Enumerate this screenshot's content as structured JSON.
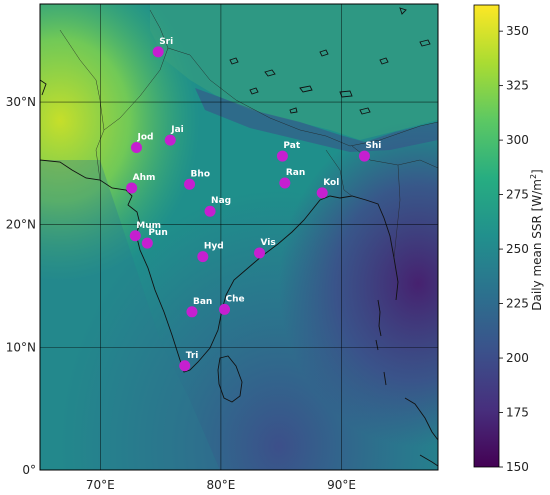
{
  "map": {
    "lon_ticks": [
      "70°E",
      "80°E",
      "90°E"
    ],
    "lat_ticks": [
      "0°",
      "10°N",
      "20°N",
      "30°N"
    ],
    "lon_values": [
      70,
      80,
      90
    ],
    "lat_values": [
      0,
      10,
      20,
      30
    ],
    "extent": {
      "lon": [
        65,
        98
      ],
      "lat": [
        0,
        38
      ]
    }
  },
  "colorbar": {
    "label": "Daily mean SSR [W/m²]",
    "label_main": "Daily mean SSR [W/m",
    "label_sup": "2",
    "label_end": "]",
    "ticks": [
      "150",
      "175",
      "200",
      "225",
      "250",
      "275",
      "300",
      "325",
      "350"
    ],
    "tick_values": [
      150,
      175,
      200,
      225,
      250,
      275,
      300,
      325,
      350
    ],
    "range": [
      150,
      362
    ],
    "colormap": "viridis",
    "colors": [
      "#440154",
      "#472f7d",
      "#3b518b",
      "#2c718e",
      "#21908d",
      "#27ad81",
      "#5cc863",
      "#aadc32",
      "#fde725"
    ]
  },
  "cities": [
    {
      "name": "Sri",
      "lon": 74.8,
      "lat": 34.1
    },
    {
      "name": "Jod",
      "lon": 73.0,
      "lat": 26.3
    },
    {
      "name": "Jai",
      "lon": 75.8,
      "lat": 26.9
    },
    {
      "name": "Ahm",
      "lon": 72.6,
      "lat": 23.0
    },
    {
      "name": "Bho",
      "lon": 77.4,
      "lat": 23.3
    },
    {
      "name": "Pat",
      "lon": 85.1,
      "lat": 25.6
    },
    {
      "name": "Ran",
      "lon": 85.3,
      "lat": 23.4
    },
    {
      "name": "Kol",
      "lon": 88.4,
      "lat": 22.6
    },
    {
      "name": "Shi",
      "lon": 91.9,
      "lat": 25.6
    },
    {
      "name": "Nag",
      "lon": 79.1,
      "lat": 21.1
    },
    {
      "name": "Mum",
      "lon": 72.9,
      "lat": 19.1
    },
    {
      "name": "Pun",
      "lon": 73.9,
      "lat": 18.5
    },
    {
      "name": "Hyd",
      "lon": 78.5,
      "lat": 17.4
    },
    {
      "name": "Vis",
      "lon": 83.2,
      "lat": 17.7
    },
    {
      "name": "Ban",
      "lon": 77.6,
      "lat": 12.9
    },
    {
      "name": "Che",
      "lon": 80.3,
      "lat": 13.1
    },
    {
      "name": "Tri",
      "lon": 77.0,
      "lat": 8.5
    }
  ],
  "marker_color": "#c51fd0"
}
